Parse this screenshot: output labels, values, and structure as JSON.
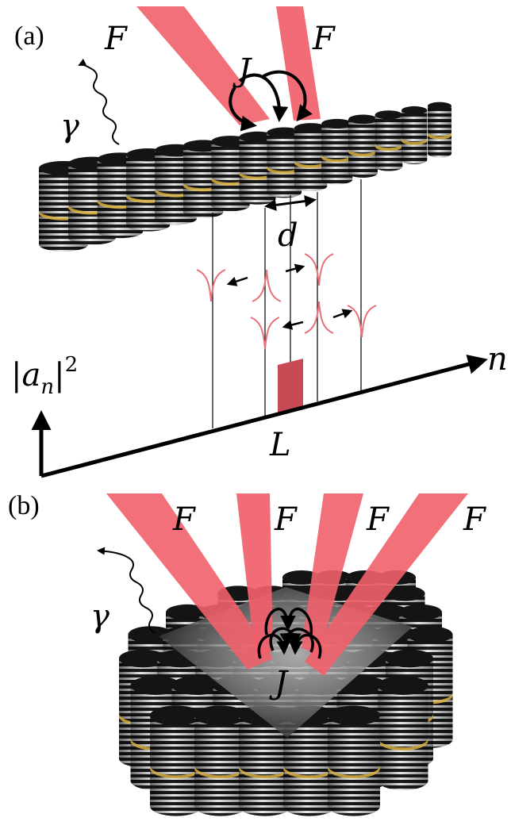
{
  "panel_a": {
    "label": "(a)",
    "pump_label_left": "F",
    "pump_label_right": "F",
    "coupling_label": "J",
    "photon_label": "γ",
    "spacing_label": "d",
    "density_axis_base": "|a",
    "density_axis_sub": "n",
    "density_axis_sup": "2",
    "site_axis_label": "n",
    "pumped_region_label": "L"
  },
  "panel_b": {
    "label": "(b)",
    "pump_labels": [
      "F",
      "F",
      "F",
      "F"
    ],
    "photon_label": "γ",
    "coupling_label": "J"
  },
  "colors": {
    "pump_beam": "#f0606a",
    "soliton": "#e8707a",
    "pumped_bar": "#c84a55",
    "gain_layer": "#d8b040",
    "pillar_dark": "#141414",
    "axis": "#000000"
  }
}
